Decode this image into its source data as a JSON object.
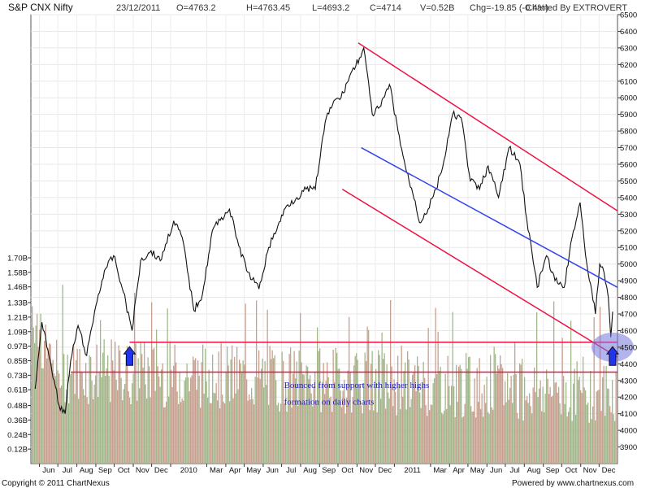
{
  "header": {
    "symbol": "S&P CNX Nifty",
    "date": "23/12/2011",
    "open": "O=4763.2",
    "high": "H=4763.45",
    "low": "L=4693.2",
    "close": "C=4714",
    "volume": "V=0.52B",
    "change": "Chg=-19.85 (-0.4%)",
    "charted_by": "Charted By EXTROVERT"
  },
  "footer": {
    "copyright": "Copyright © 2011 ChartNexus",
    "powered_by": "Powered by www.chartnexus.com"
  },
  "chart_data": {
    "type": "line",
    "title": "S&P CNX Nifty",
    "subtitle": "23/12/2011",
    "price_axis": {
      "ylim": [
        3800,
        6500
      ],
      "ticks": [
        3900,
        4000,
        4100,
        4200,
        4300,
        4400,
        4500,
        4600,
        4700,
        4800,
        4900,
        5000,
        5100,
        5200,
        5300,
        5400,
        5500,
        5600,
        5700,
        5800,
        5900,
        6000,
        6100,
        6200,
        6300,
        6400,
        6500
      ],
      "position": "right"
    },
    "volume_axis": {
      "ticks": [
        "0.12B",
        "0.24B",
        "0.36B",
        "0.48B",
        "0.61B",
        "0.73B",
        "0.85B",
        "0.97B",
        "1.09B",
        "1.21B",
        "1.33B",
        "1.46B",
        "1.58B",
        "1.70B"
      ],
      "values": [
        0.12,
        0.24,
        0.36,
        0.48,
        0.61,
        0.73,
        0.85,
        0.97,
        1.09,
        1.21,
        1.33,
        1.46,
        1.58,
        1.7
      ],
      "position": "left"
    },
    "x_tick_labels": [
      "Jun",
      "Jul",
      "Aug",
      "Sep",
      "Oct",
      "Nov",
      "Dec",
      "2010",
      "Mar",
      "Apr",
      "May",
      "Jun",
      "Jul",
      "Aug",
      "Sep",
      "Oct",
      "Nov",
      "Dec",
      "2011",
      "Mar",
      "Apr",
      "May",
      "Jun",
      "Jul",
      "Aug",
      "Sep",
      "Oct",
      "Nov",
      "Dec"
    ],
    "x_ticks": [
      "2009-06",
      "2009-07",
      "2009-08",
      "2009-09",
      "2009-10",
      "2009-11",
      "2009-12",
      "2010-01",
      "2010-03",
      "2010-04",
      "2010-05",
      "2010-06",
      "2010-07",
      "2010-08",
      "2010-09",
      "2010-10",
      "2010-11",
      "2010-12",
      "2011-01",
      "2011-03",
      "2011-04",
      "2011-05",
      "2011-06",
      "2011-07",
      "2011-08",
      "2011-09",
      "2011-10",
      "2011-11",
      "2011-12"
    ],
    "price_series": {
      "name": "S&P CNX Nifty",
      "x": [
        "2009-05-25",
        "2009-06-05",
        "2009-06-15",
        "2009-06-25",
        "2009-07-03",
        "2009-07-13",
        "2009-07-22",
        "2009-08-03",
        "2009-08-17",
        "2009-09-01",
        "2009-09-15",
        "2009-09-30",
        "2009-10-16",
        "2009-10-30",
        "2009-11-13",
        "2009-11-30",
        "2009-12-15",
        "2010-01-06",
        "2010-01-20",
        "2010-02-08",
        "2010-02-22",
        "2010-03-10",
        "2010-03-25",
        "2010-04-07",
        "2010-04-22",
        "2010-05-07",
        "2010-05-25",
        "2010-06-10",
        "2010-06-25",
        "2010-07-09",
        "2010-07-26",
        "2010-08-10",
        "2010-08-25",
        "2010-09-10",
        "2010-09-24",
        "2010-10-06",
        "2010-10-20",
        "2010-11-05",
        "2010-11-12",
        "2010-11-26",
        "2010-12-10",
        "2010-12-24",
        "2011-01-07",
        "2011-01-21",
        "2011-02-04",
        "2011-02-11",
        "2011-02-25",
        "2011-03-10",
        "2011-03-25",
        "2011-04-06",
        "2011-04-20",
        "2011-05-05",
        "2011-05-20",
        "2011-06-03",
        "2011-06-20",
        "2011-07-07",
        "2011-07-25",
        "2011-08-05",
        "2011-08-22",
        "2011-09-06",
        "2011-09-20",
        "2011-10-05",
        "2011-10-20",
        "2011-10-31",
        "2011-11-11",
        "2011-11-25",
        "2011-12-02",
        "2011-12-09",
        "2011-12-16",
        "2011-12-20",
        "2011-12-23"
      ],
      "y": [
        4250,
        4650,
        4480,
        4300,
        4150,
        4100,
        4420,
        4630,
        4450,
        4750,
        4960,
        5050,
        4830,
        4600,
        5020,
        5080,
        5020,
        5260,
        5160,
        4720,
        4820,
        5200,
        5280,
        5330,
        5110,
        4950,
        4850,
        5100,
        5230,
        5350,
        5400,
        5450,
        5450,
        5850,
        5980,
        6000,
        6130,
        6240,
        6300,
        5900,
        5950,
        6080,
        5800,
        5550,
        5380,
        5250,
        5330,
        5450,
        5650,
        5900,
        5880,
        5500,
        5450,
        5590,
        5400,
        5700,
        5600,
        5270,
        4860,
        5050,
        4900,
        4860,
        5200,
        5370,
        5000,
        4700,
        5000,
        4950,
        4800,
        4560,
        4714
      ]
    },
    "trendlines": [
      {
        "name": "channel-upper",
        "color": "#ee1144",
        "x": [
          "2010-11-03",
          "2011-12-31"
        ],
        "y": [
          6330,
          5320
        ]
      },
      {
        "name": "channel-middle",
        "color": "#3344ee",
        "x": [
          "2010-11-08",
          "2011-12-31"
        ],
        "y": [
          5700,
          4860
        ]
      },
      {
        "name": "channel-lower",
        "color": "#ee1144",
        "x": [
          "2010-10-08",
          "2011-12-31"
        ],
        "y": [
          5450,
          4440
        ]
      },
      {
        "name": "support-upper",
        "color": "#ee1144",
        "x": [
          "2009-10-26",
          "2011-12-31"
        ],
        "y": [
          4530,
          4530
        ]
      },
      {
        "name": "support-lower",
        "color": "#ee1144",
        "x": [
          "2009-07-22",
          "2011-12-31"
        ],
        "y": [
          4350,
          4350
        ]
      }
    ],
    "annotations": [
      {
        "text": "Bounced from support with higher highs",
        "x": "2010-07-05",
        "y": 4255
      },
      {
        "text": "formation on daily charts",
        "x": "2010-07-05",
        "y": 4155
      }
    ],
    "arrows": [
      {
        "x": "2009-10-26",
        "y": 4430,
        "direction": "up",
        "color": "#2233ee"
      },
      {
        "x": "2011-12-23",
        "y": 4430,
        "direction": "up",
        "color": "#2233ee"
      }
    ],
    "highlight": {
      "shape": "ellipse",
      "x": "2011-12-23",
      "y": 4500,
      "color": "#7777dd"
    },
    "volume_colors": [
      "#a0b88a",
      "#c8a090"
    ],
    "grid": true,
    "legend": "none"
  }
}
